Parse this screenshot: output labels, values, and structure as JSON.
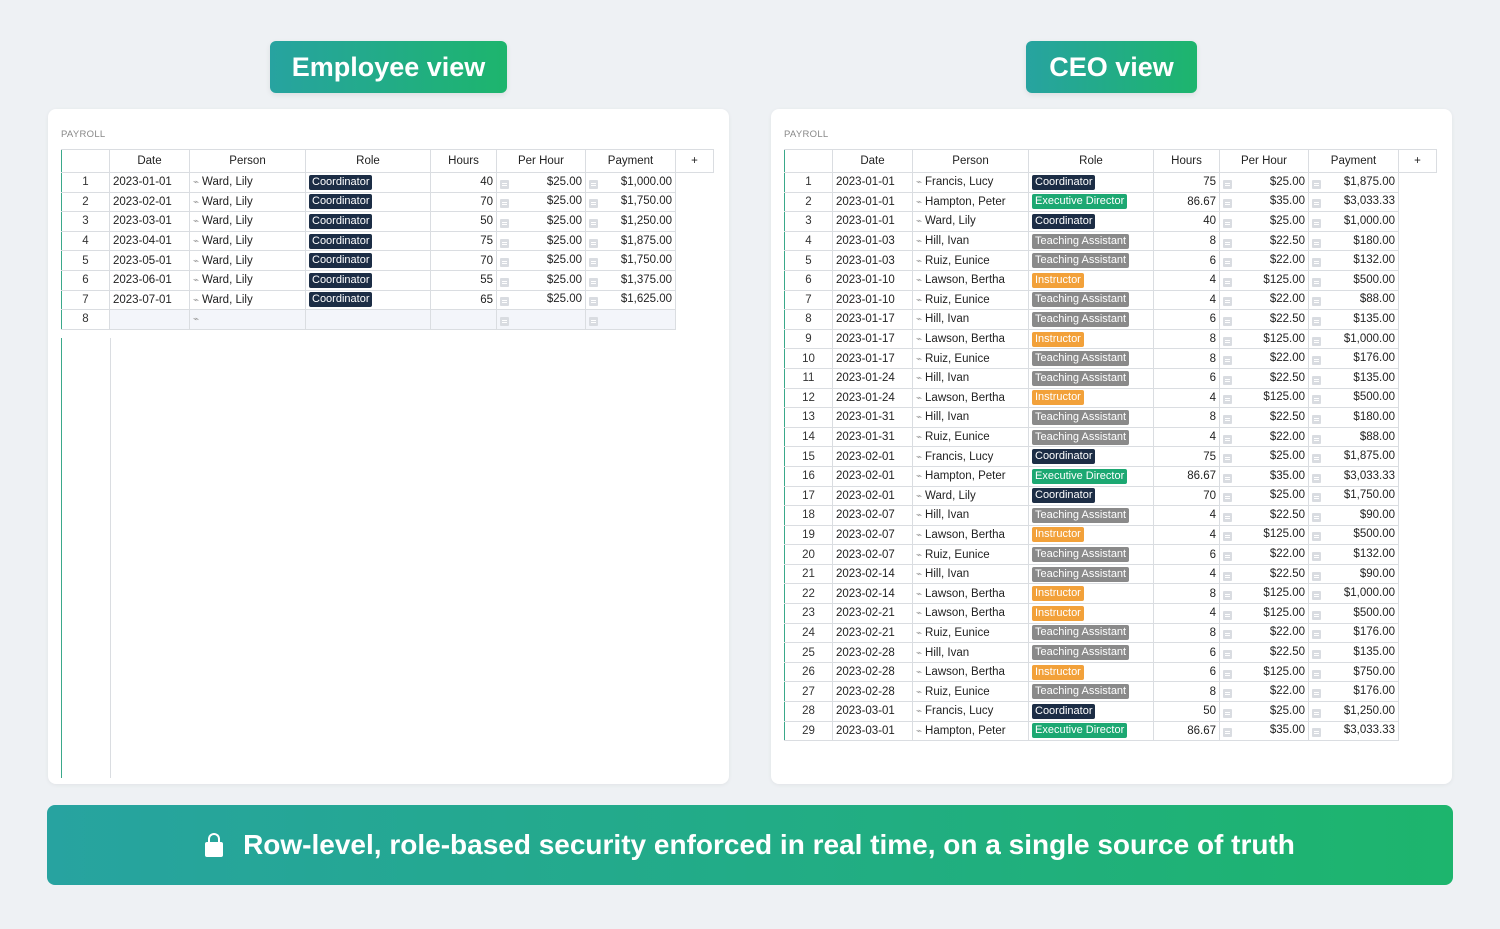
{
  "employee_view": {
    "label": "Employee view",
    "sheet_title": "PAYROLL",
    "columns": [
      "Date",
      "Person",
      "Role",
      "Hours",
      "Per Hour",
      "Payment",
      "+"
    ],
    "rows": [
      [
        "1",
        "2023-01-01",
        "Ward, Lily",
        "Coordinator",
        "40",
        "$25.00",
        "$1,000.00"
      ],
      [
        "2",
        "2023-02-01",
        "Ward, Lily",
        "Coordinator",
        "70",
        "$25.00",
        "$1,750.00"
      ],
      [
        "3",
        "2023-03-01",
        "Ward, Lily",
        "Coordinator",
        "50",
        "$25.00",
        "$1,250.00"
      ],
      [
        "4",
        "2023-04-01",
        "Ward, Lily",
        "Coordinator",
        "75",
        "$25.00",
        "$1,875.00"
      ],
      [
        "5",
        "2023-05-01",
        "Ward, Lily",
        "Coordinator",
        "70",
        "$25.00",
        "$1,750.00"
      ],
      [
        "6",
        "2023-06-01",
        "Ward, Lily",
        "Coordinator",
        "55",
        "$25.00",
        "$1,375.00"
      ],
      [
        "7",
        "2023-07-01",
        "Ward, Lily",
        "Coordinator",
        "65",
        "$25.00",
        "$1,625.00"
      ]
    ],
    "new_row_number": "8"
  },
  "ceo_view": {
    "label": "CEO view",
    "sheet_title": "PAYROLL",
    "columns": [
      "Date",
      "Person",
      "Role",
      "Hours",
      "Per Hour",
      "Payment",
      "+"
    ],
    "rows": [
      [
        "1",
        "2023-01-01",
        "Francis, Lucy",
        "Coordinator",
        "75",
        "$25.00",
        "$1,875.00"
      ],
      [
        "2",
        "2023-01-01",
        "Hampton, Peter",
        "Executive Director",
        "86.67",
        "$35.00",
        "$3,033.33"
      ],
      [
        "3",
        "2023-01-01",
        "Ward, Lily",
        "Coordinator",
        "40",
        "$25.00",
        "$1,000.00"
      ],
      [
        "4",
        "2023-01-03",
        "Hill, Ivan",
        "Teaching Assistant",
        "8",
        "$22.50",
        "$180.00"
      ],
      [
        "5",
        "2023-01-03",
        "Ruiz, Eunice",
        "Teaching Assistant",
        "6",
        "$22.00",
        "$132.00"
      ],
      [
        "6",
        "2023-01-10",
        "Lawson, Bertha",
        "Instructor",
        "4",
        "$125.00",
        "$500.00"
      ],
      [
        "7",
        "2023-01-10",
        "Ruiz, Eunice",
        "Teaching Assistant",
        "4",
        "$22.00",
        "$88.00"
      ],
      [
        "8",
        "2023-01-17",
        "Hill, Ivan",
        "Teaching Assistant",
        "6",
        "$22.50",
        "$135.00"
      ],
      [
        "9",
        "2023-01-17",
        "Lawson, Bertha",
        "Instructor",
        "8",
        "$125.00",
        "$1,000.00"
      ],
      [
        "10",
        "2023-01-17",
        "Ruiz, Eunice",
        "Teaching Assistant",
        "8",
        "$22.00",
        "$176.00"
      ],
      [
        "11",
        "2023-01-24",
        "Hill, Ivan",
        "Teaching Assistant",
        "6",
        "$22.50",
        "$135.00"
      ],
      [
        "12",
        "2023-01-24",
        "Lawson, Bertha",
        "Instructor",
        "4",
        "$125.00",
        "$500.00"
      ],
      [
        "13",
        "2023-01-31",
        "Hill, Ivan",
        "Teaching Assistant",
        "8",
        "$22.50",
        "$180.00"
      ],
      [
        "14",
        "2023-01-31",
        "Ruiz, Eunice",
        "Teaching Assistant",
        "4",
        "$22.00",
        "$88.00"
      ],
      [
        "15",
        "2023-02-01",
        "Francis, Lucy",
        "Coordinator",
        "75",
        "$25.00",
        "$1,875.00"
      ],
      [
        "16",
        "2023-02-01",
        "Hampton, Peter",
        "Executive Director",
        "86.67",
        "$35.00",
        "$3,033.33"
      ],
      [
        "17",
        "2023-02-01",
        "Ward, Lily",
        "Coordinator",
        "70",
        "$25.00",
        "$1,750.00"
      ],
      [
        "18",
        "2023-02-07",
        "Hill, Ivan",
        "Teaching Assistant",
        "4",
        "$22.50",
        "$90.00"
      ],
      [
        "19",
        "2023-02-07",
        "Lawson, Bertha",
        "Instructor",
        "4",
        "$125.00",
        "$500.00"
      ],
      [
        "20",
        "2023-02-07",
        "Ruiz, Eunice",
        "Teaching Assistant",
        "6",
        "$22.00",
        "$132.00"
      ],
      [
        "21",
        "2023-02-14",
        "Hill, Ivan",
        "Teaching Assistant",
        "4",
        "$22.50",
        "$90.00"
      ],
      [
        "22",
        "2023-02-14",
        "Lawson, Bertha",
        "Instructor",
        "8",
        "$125.00",
        "$1,000.00"
      ],
      [
        "23",
        "2023-02-21",
        "Lawson, Bertha",
        "Instructor",
        "4",
        "$125.00",
        "$500.00"
      ],
      [
        "24",
        "2023-02-21",
        "Ruiz, Eunice",
        "Teaching Assistant",
        "8",
        "$22.00",
        "$176.00"
      ],
      [
        "25",
        "2023-02-28",
        "Hill, Ivan",
        "Teaching Assistant",
        "6",
        "$22.50",
        "$135.00"
      ],
      [
        "26",
        "2023-02-28",
        "Lawson, Bertha",
        "Instructor",
        "6",
        "$125.00",
        "$750.00"
      ],
      [
        "27",
        "2023-02-28",
        "Ruiz, Eunice",
        "Teaching Assistant",
        "8",
        "$22.00",
        "$176.00"
      ],
      [
        "28",
        "2023-03-01",
        "Francis, Lucy",
        "Coordinator",
        "50",
        "$25.00",
        "$1,250.00"
      ],
      [
        "29",
        "2023-03-01",
        "Hampton, Peter",
        "Executive Director",
        "86.67",
        "$35.00",
        "$3,033.33"
      ]
    ]
  },
  "role_colors": {
    "Coordinator": "#1c2d45",
    "Executive Director": "#1ca872",
    "Teaching Assistant": "#8a8a8a",
    "Instructor": "#f2a13a"
  },
  "banner": {
    "icon": "lock-icon",
    "text": "Row-level, role-based security enforced in real time, on a single source of truth"
  }
}
